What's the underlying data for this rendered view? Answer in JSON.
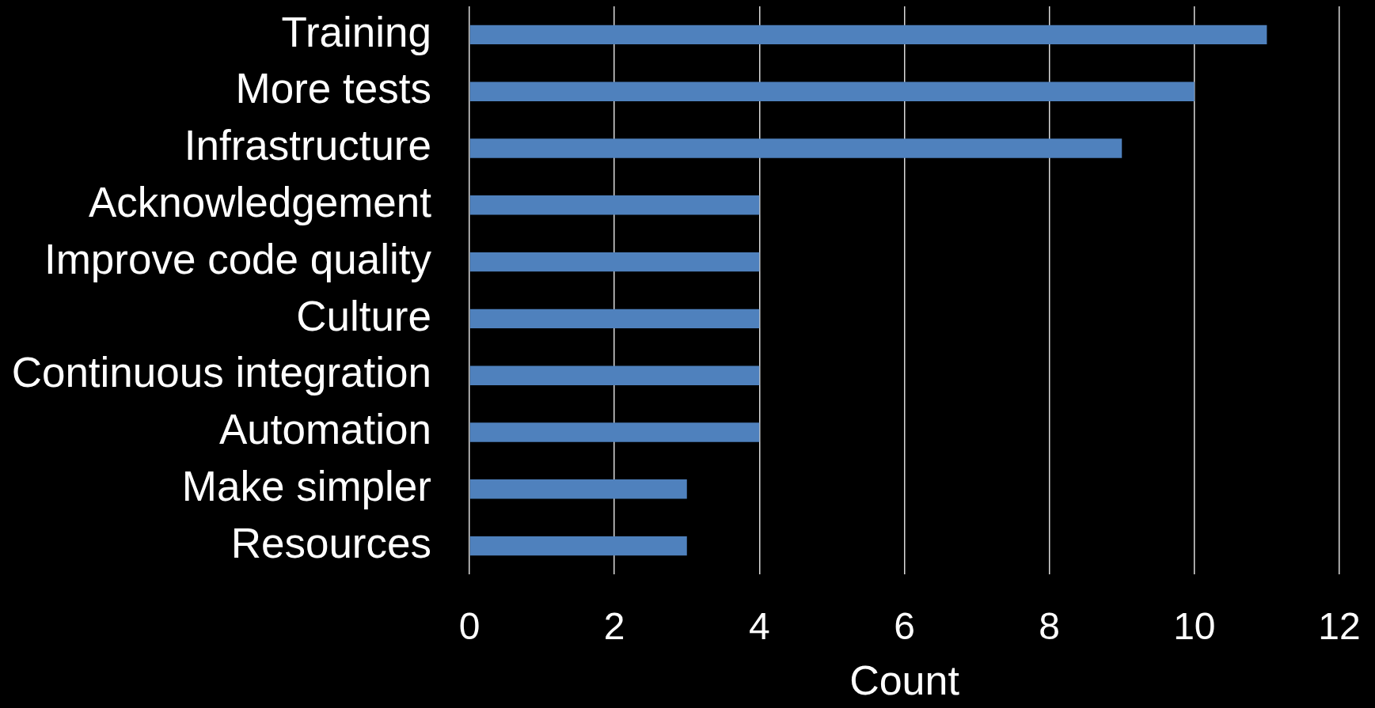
{
  "chart_data": {
    "type": "bar",
    "orientation": "horizontal",
    "categories": [
      "Training",
      "More tests",
      "Infrastructure",
      "Acknowledgement",
      "Improve code quality",
      "Culture",
      "Continuous integration",
      "Automation",
      "Make simpler",
      "Resources"
    ],
    "values": [
      11,
      10,
      9,
      4,
      4,
      4,
      4,
      4,
      3,
      3
    ],
    "color": "#4f81bd",
    "xlabel": "Count",
    "xlim": [
      0,
      12
    ],
    "xticks": [
      0,
      2,
      4,
      6,
      8,
      10,
      12
    ],
    "grid": "x"
  }
}
